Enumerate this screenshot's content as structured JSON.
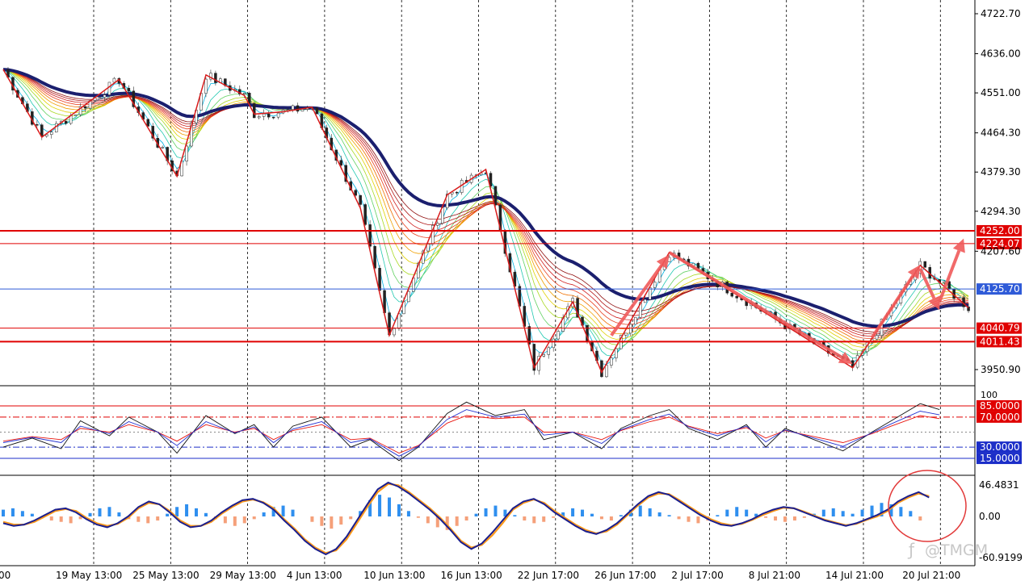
{
  "chart_data": [
    {
      "type": "line",
      "panel": "price",
      "x": [
        "19 May 13:00",
        "25 May 13:00",
        "29 May 13:00",
        "4 Jun 13:00",
        "10 Jun 13:00",
        "16 Jun 13:00",
        "22 Jun 17:00",
        "26 Jun 17:00",
        "2 Jul 17:00",
        "8 Jul 21:00",
        "14 Jul 21:00",
        "20 Jul 21:00"
      ],
      "y_ticks": [
        "4722.70",
        "4636.00",
        "4551.00",
        "4464.30",
        "4379.30",
        "4294.30",
        "4207.60",
        "3950.90"
      ],
      "ylim": [
        3910,
        4745
      ],
      "zigzag": [
        {
          "t": 0,
          "p": 4602
        },
        {
          "t": 4,
          "p": 4455
        },
        {
          "t": 12,
          "p": 4580
        },
        {
          "t": 18,
          "p": 4370
        },
        {
          "t": 21,
          "p": 4590
        },
        {
          "t": 25,
          "p": 4545
        },
        {
          "t": 26,
          "p": 4505
        },
        {
          "t": 29,
          "p": 4510
        },
        {
          "t": 32,
          "p": 4520
        },
        {
          "t": 37,
          "p": 4301
        },
        {
          "t": 40,
          "p": 4025
        },
        {
          "t": 46,
          "p": 4330
        },
        {
          "t": 50,
          "p": 4385
        },
        {
          "t": 55,
          "p": 3955
        },
        {
          "t": 59,
          "p": 4098
        },
        {
          "t": 62,
          "p": 3945
        },
        {
          "t": 69,
          "p": 4205
        },
        {
          "t": 88,
          "p": 3955
        },
        {
          "t": 95,
          "p": 4177
        },
        {
          "t": 100,
          "p": 4085
        }
      ],
      "forecast_arrows": [
        {
          "from_t": 63,
          "from_p": 4025,
          "to_t": 69,
          "to_p": 4200
        },
        {
          "from_t": 69,
          "from_p": 4205,
          "to_t": 88,
          "to_p": 3963
        },
        {
          "from_t": 90,
          "from_p": 4020,
          "to_t": 95,
          "to_p": 4178
        },
        {
          "from_t": 95,
          "from_p": 4170,
          "to_t": 97,
          "to_p": 4080
        },
        {
          "from_t": 97,
          "from_p": 4098,
          "to_t": 99.5,
          "to_p": 4235
        }
      ],
      "levels": [
        {
          "value": 4252.0,
          "label": "4252.00",
          "color": "#e00000",
          "style": "thick"
        },
        {
          "value": 4224.07,
          "label": "4224.07",
          "color": "#e00000",
          "style": "thin"
        },
        {
          "value": 4125.7,
          "label": "4125.70",
          "color": "#2f5bd8",
          "style": "thin"
        },
        {
          "value": 4040.79,
          "label": "4040.79",
          "color": "#e00000",
          "style": "thin"
        },
        {
          "value": 4011.43,
          "label": "4011.43",
          "color": "#e00000",
          "style": "thick"
        }
      ],
      "grid": "vertical-dotted",
      "legend": "none"
    },
    {
      "type": "line",
      "panel": "stochastic",
      "ylim": [
        0,
        100
      ],
      "y_ticks": [
        "100"
      ],
      "levels": [
        {
          "value": 85,
          "label": "85.0000",
          "color": "#e00000",
          "style": "solid"
        },
        {
          "value": 70,
          "label": "70.0000",
          "color": "#e00000",
          "style": "dashdot"
        },
        {
          "value": 50,
          "label": "",
          "color": "#888888",
          "style": "dotted"
        },
        {
          "value": 30,
          "label": "30.0000",
          "color": "#1c2ec8",
          "style": "dashdot"
        },
        {
          "value": 15,
          "label": "15.0000",
          "color": "#1c2ec8",
          "style": "solid"
        }
      ],
      "series": [
        {
          "color": "#111111",
          "points": [
            [
              0,
              30
            ],
            [
              3,
              42
            ],
            [
              6,
              28
            ],
            [
              8,
              65
            ],
            [
              11,
              45
            ],
            [
              13,
              70
            ],
            [
              16,
              50
            ],
            [
              18,
              22
            ],
            [
              21,
              72
            ],
            [
              24,
              48
            ],
            [
              26,
              60
            ],
            [
              28,
              30
            ],
            [
              30,
              58
            ],
            [
              33,
              70
            ],
            [
              36,
              30
            ],
            [
              38,
              40
            ],
            [
              41,
              12
            ],
            [
              43,
              30
            ],
            [
              46,
              75
            ],
            [
              48,
              90
            ],
            [
              51,
              72
            ],
            [
              54,
              80
            ],
            [
              56,
              40
            ],
            [
              59,
              50
            ],
            [
              62,
              28
            ],
            [
              64,
              55
            ],
            [
              67,
              72
            ],
            [
              69,
              80
            ],
            [
              71,
              55
            ],
            [
              74,
              40
            ],
            [
              77,
              60
            ],
            [
              79,
              30
            ],
            [
              81,
              55
            ],
            [
              84,
              40
            ],
            [
              87,
              25
            ],
            [
              90,
              50
            ],
            [
              92,
              65
            ],
            [
              95,
              88
            ],
            [
              97,
              80
            ]
          ]
        },
        {
          "color": "#e8150e",
          "points": [
            [
              0,
              38
            ],
            [
              3,
              44
            ],
            [
              6,
              40
            ],
            [
              8,
              55
            ],
            [
              11,
              50
            ],
            [
              13,
              60
            ],
            [
              16,
              50
            ],
            [
              18,
              38
            ],
            [
              21,
              60
            ],
            [
              24,
              50
            ],
            [
              26,
              55
            ],
            [
              28,
              40
            ],
            [
              30,
              52
            ],
            [
              33,
              60
            ],
            [
              36,
              40
            ],
            [
              38,
              42
            ],
            [
              41,
              22
            ],
            [
              43,
              32
            ],
            [
              46,
              62
            ],
            [
              48,
              72
            ],
            [
              51,
              68
            ],
            [
              54,
              70
            ],
            [
              56,
              50
            ],
            [
              59,
              50
            ],
            [
              62,
              40
            ],
            [
              64,
              52
            ],
            [
              67,
              64
            ],
            [
              69,
              70
            ],
            [
              71,
              58
            ],
            [
              74,
              48
            ],
            [
              77,
              56
            ],
            [
              79,
              42
            ],
            [
              81,
              52
            ],
            [
              84,
              44
            ],
            [
              87,
              36
            ],
            [
              90,
              48
            ],
            [
              92,
              58
            ],
            [
              95,
              72
            ],
            [
              97,
              68
            ]
          ]
        },
        {
          "color": "#2230d0",
          "points": [
            [
              0,
              36
            ],
            [
              3,
              43
            ],
            [
              6,
              36
            ],
            [
              8,
              58
            ],
            [
              11,
              48
            ],
            [
              13,
              64
            ],
            [
              16,
              50
            ],
            [
              18,
              32
            ],
            [
              21,
              64
            ],
            [
              24,
              49
            ],
            [
              26,
              57
            ],
            [
              28,
              36
            ],
            [
              30,
              54
            ],
            [
              33,
              64
            ],
            [
              36,
              36
            ],
            [
              38,
              41
            ],
            [
              41,
              18
            ],
            [
              43,
              31
            ],
            [
              46,
              67
            ],
            [
              48,
              80
            ],
            [
              51,
              70
            ],
            [
              54,
              74
            ],
            [
              56,
              46
            ],
            [
              59,
              50
            ],
            [
              62,
              35
            ],
            [
              64,
              53
            ],
            [
              67,
              67
            ],
            [
              69,
              74
            ],
            [
              71,
              57
            ],
            [
              74,
              45
            ],
            [
              77,
              58
            ],
            [
              79,
              37
            ],
            [
              81,
              53
            ],
            [
              84,
              42
            ],
            [
              87,
              31
            ],
            [
              90,
              49
            ],
            [
              92,
              61
            ],
            [
              95,
              78
            ],
            [
              97,
              73
            ]
          ]
        }
      ]
    },
    {
      "type": "bar",
      "panel": "macd",
      "ylim": [
        -66,
        52
      ],
      "y_ticks": [
        "46.4831",
        "0.00",
        "-60.9199"
      ],
      "histogram": [
        10,
        12,
        8,
        4,
        -3,
        -6,
        -8,
        -10,
        -4,
        5,
        12,
        14,
        6,
        -4,
        -8,
        -10,
        -6,
        4,
        14,
        18,
        12,
        5,
        -4,
        -10,
        -14,
        -10,
        -4,
        6,
        14,
        16,
        10,
        0,
        -8,
        -14,
        -18,
        -12,
        -4,
        8,
        24,
        32,
        28,
        18,
        8,
        -2,
        -10,
        -16,
        -20,
        -14,
        -6,
        4,
        12,
        16,
        10,
        2,
        -6,
        -10,
        -8,
        -2,
        6,
        12,
        10,
        4,
        -4,
        -6,
        2,
        10,
        16,
        12,
        6,
        2,
        -4,
        -8,
        -10,
        -6,
        2,
        10,
        14,
        10,
        4,
        -2,
        -6,
        -8,
        -6,
        -2,
        4,
        10,
        12,
        8,
        4,
        10,
        16,
        20,
        18,
        14,
        8,
        -6
      ],
      "macd_line": [
        -10,
        -14,
        -12,
        -6,
        2,
        10,
        12,
        6,
        -4,
        -12,
        -16,
        -10,
        0,
        14,
        22,
        18,
        6,
        -8,
        -16,
        -14,
        -6,
        6,
        16,
        24,
        26,
        20,
        10,
        -6,
        -20,
        -36,
        -48,
        -56,
        -48,
        -30,
        -6,
        18,
        40,
        50,
        44,
        34,
        22,
        10,
        -4,
        -20,
        -38,
        -48,
        -40,
        -24,
        -6,
        12,
        22,
        26,
        18,
        6,
        -4,
        -14,
        -22,
        -26,
        -20,
        -10,
        4,
        18,
        30,
        36,
        32,
        22,
        12,
        2,
        -6,
        -12,
        -14,
        -10,
        -4,
        4,
        10,
        14,
        12,
        6,
        0,
        -6,
        -10,
        -14,
        -10,
        -4,
        2,
        10,
        22,
        30,
        36,
        28
      ],
      "signal_line": [
        -8,
        -12,
        -12,
        -8,
        0,
        8,
        11,
        8,
        -2,
        -10,
        -14,
        -11,
        -2,
        12,
        20,
        18,
        8,
        -6,
        -14,
        -14,
        -8,
        4,
        14,
        22,
        25,
        21,
        12,
        -4,
        -18,
        -34,
        -46,
        -54,
        -50,
        -34,
        -10,
        14,
        36,
        48,
        46,
        36,
        24,
        12,
        -2,
        -18,
        -36,
        -46,
        -42,
        -28,
        -10,
        10,
        20,
        25,
        20,
        8,
        -2,
        -12,
        -20,
        -25,
        -22,
        -12,
        2,
        16,
        28,
        34,
        33,
        24,
        14,
        4,
        -4,
        -10,
        -13,
        -11,
        -5,
        2,
        8,
        13,
        12,
        7,
        1,
        -5,
        -9,
        -13,
        -11,
        -5,
        0,
        8,
        20,
        28,
        34,
        30
      ],
      "zero_label": "0.00",
      "watermark": "@TMGM"
    }
  ]
}
